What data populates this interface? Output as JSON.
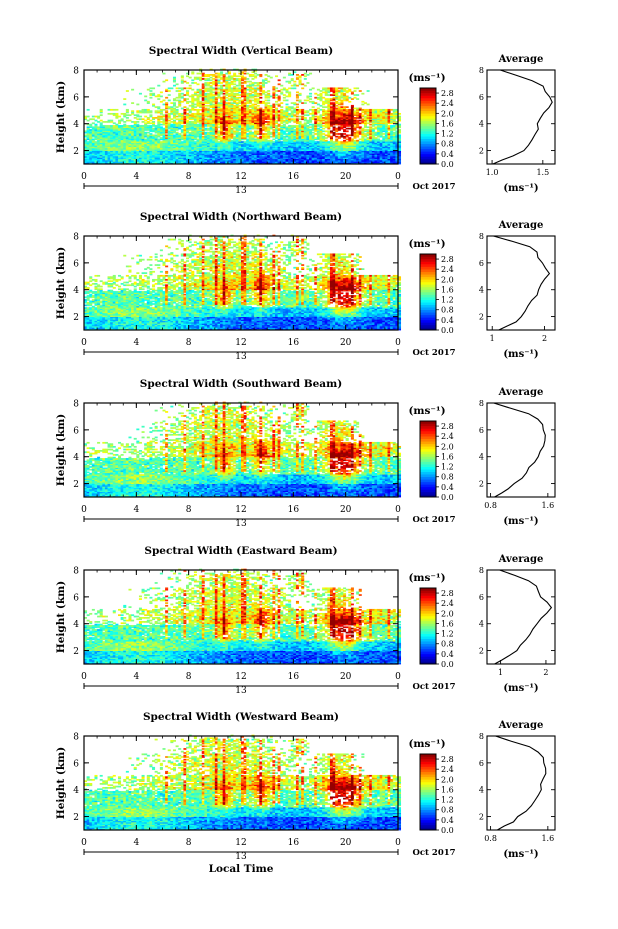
{
  "chart_data": [
    {
      "type": "heatmap",
      "title": "Spectral Width (Vertical Beam)",
      "ylabel": "Height (km)",
      "xlim": [
        0,
        24
      ],
      "ylim": [
        1,
        8
      ],
      "x_ticks": [
        "0",
        "4",
        "8",
        "12",
        "16",
        "20",
        "0"
      ],
      "y_ticks": [
        "2",
        "4",
        "6",
        "8"
      ],
      "date_label": "13",
      "month_label": "Oct 2017",
      "colorbar": {
        "unit": "(ms⁻¹)",
        "ticks": [
          "2.8",
          "2.4",
          "2.0",
          "1.6",
          "1.2",
          "0.8",
          "0.4",
          "0.0"
        ],
        "range": [
          0.0,
          3.0
        ]
      },
      "average_profile": {
        "title": "Average",
        "xlabel": "(ms⁻¹)",
        "x_ticks": [
          "1.0",
          "1.5"
        ],
        "xlim": [
          0.95,
          1.62
        ],
        "points": [
          [
            1.0,
            1.0
          ],
          [
            1.1,
            1.3
          ],
          [
            1.2,
            1.6
          ],
          [
            1.3,
            2.0
          ],
          [
            1.35,
            2.4
          ],
          [
            1.38,
            2.8
          ],
          [
            1.42,
            3.2
          ],
          [
            1.45,
            3.6
          ],
          [
            1.46,
            4.0
          ],
          [
            1.48,
            4.4
          ],
          [
            1.52,
            4.8
          ],
          [
            1.55,
            5.2
          ],
          [
            1.58,
            5.6
          ],
          [
            1.56,
            6.0
          ],
          [
            1.52,
            6.4
          ],
          [
            1.5,
            6.8
          ],
          [
            1.4,
            7.2
          ],
          [
            1.25,
            7.6
          ],
          [
            1.08,
            8.0
          ]
        ]
      }
    },
    {
      "type": "heatmap",
      "title": "Spectral Width (Northward Beam)",
      "ylabel": "Height (km)",
      "xlim": [
        0,
        24
      ],
      "ylim": [
        1,
        8
      ],
      "x_ticks": [
        "0",
        "4",
        "8",
        "12",
        "16",
        "20",
        "0"
      ],
      "y_ticks": [
        "2",
        "4",
        "6",
        "8"
      ],
      "date_label": "13",
      "month_label": "Oct 2017",
      "colorbar": {
        "unit": "(ms⁻¹)",
        "ticks": [
          "2.8",
          "2.4",
          "2.0",
          "1.6",
          "1.2",
          "0.8",
          "0.4",
          "0.0"
        ],
        "range": [
          0.0,
          3.0
        ]
      },
      "average_profile": {
        "title": "Average",
        "xlabel": "(ms⁻¹)",
        "x_ticks": [
          "1",
          "2"
        ],
        "xlim": [
          0.9,
          2.2
        ],
        "points": [
          [
            1.1,
            1.0
          ],
          [
            1.3,
            1.3
          ],
          [
            1.45,
            1.6
          ],
          [
            1.55,
            2.0
          ],
          [
            1.62,
            2.4
          ],
          [
            1.7,
            2.8
          ],
          [
            1.78,
            3.2
          ],
          [
            1.85,
            3.6
          ],
          [
            1.9,
            4.0
          ],
          [
            1.95,
            4.4
          ],
          [
            2.02,
            4.8
          ],
          [
            2.08,
            5.2
          ],
          [
            2.0,
            5.6
          ],
          [
            1.95,
            6.0
          ],
          [
            1.9,
            6.4
          ],
          [
            1.85,
            6.8
          ],
          [
            1.7,
            7.2
          ],
          [
            1.4,
            7.6
          ],
          [
            1.05,
            8.0
          ]
        ]
      }
    },
    {
      "type": "heatmap",
      "title": "Spectral Width (Southward Beam)",
      "ylabel": "Height (km)",
      "xlim": [
        0,
        24
      ],
      "ylim": [
        1,
        8
      ],
      "x_ticks": [
        "0",
        "4",
        "8",
        "12",
        "16",
        "20",
        "0"
      ],
      "y_ticks": [
        "2",
        "4",
        "6",
        "8"
      ],
      "date_label": "13",
      "month_label": "Oct 2017",
      "colorbar": {
        "unit": "(ms⁻¹)",
        "ticks": [
          "2.8",
          "2.4",
          "2.0",
          "1.6",
          "1.2",
          "0.8",
          "0.4",
          "0.0"
        ],
        "range": [
          0.0,
          3.0
        ]
      },
      "average_profile": {
        "title": "Average",
        "xlabel": "(ms⁻¹)",
        "x_ticks": [
          "0.8",
          "1.6"
        ],
        "xlim": [
          0.75,
          1.7
        ],
        "points": [
          [
            0.85,
            1.0
          ],
          [
            0.95,
            1.3
          ],
          [
            1.05,
            1.6
          ],
          [
            1.15,
            2.0
          ],
          [
            1.22,
            2.4
          ],
          [
            1.28,
            2.8
          ],
          [
            1.34,
            3.2
          ],
          [
            1.4,
            3.6
          ],
          [
            1.45,
            4.0
          ],
          [
            1.5,
            4.4
          ],
          [
            1.55,
            4.8
          ],
          [
            1.58,
            5.2
          ],
          [
            1.57,
            5.6
          ],
          [
            1.55,
            6.0
          ],
          [
            1.52,
            6.4
          ],
          [
            1.48,
            6.8
          ],
          [
            1.35,
            7.2
          ],
          [
            1.1,
            7.6
          ],
          [
            0.85,
            8.0
          ]
        ]
      }
    },
    {
      "type": "heatmap",
      "title": "Spectral Width (Eastward Beam)",
      "ylabel": "Height (km)",
      "xlim": [
        0,
        24
      ],
      "ylim": [
        1,
        8
      ],
      "x_ticks": [
        "0",
        "4",
        "8",
        "12",
        "16",
        "20",
        "0"
      ],
      "y_ticks": [
        "2",
        "4",
        "6",
        "8"
      ],
      "date_label": "13",
      "month_label": "Oct 2017",
      "colorbar": {
        "unit": "(ms⁻¹)",
        "ticks": [
          "2.8",
          "2.4",
          "2.0",
          "1.6",
          "1.2",
          "0.8",
          "0.4",
          "0.0"
        ],
        "range": [
          0.0,
          3.0
        ]
      },
      "average_profile": {
        "title": "Average",
        "xlabel": "(ms⁻¹)",
        "x_ticks": [
          "1",
          "2"
        ],
        "xlim": [
          0.7,
          2.2
        ],
        "points": [
          [
            0.9,
            1.0
          ],
          [
            1.05,
            1.3
          ],
          [
            1.2,
            1.6
          ],
          [
            1.35,
            2.0
          ],
          [
            1.45,
            2.4
          ],
          [
            1.55,
            2.8
          ],
          [
            1.62,
            3.2
          ],
          [
            1.7,
            3.6
          ],
          [
            1.78,
            4.0
          ],
          [
            1.88,
            4.4
          ],
          [
            2.0,
            4.8
          ],
          [
            2.1,
            5.2
          ],
          [
            2.0,
            5.6
          ],
          [
            1.9,
            6.0
          ],
          [
            1.85,
            6.4
          ],
          [
            1.78,
            6.8
          ],
          [
            1.6,
            7.2
          ],
          [
            1.3,
            7.6
          ],
          [
            0.95,
            8.0
          ]
        ]
      }
    },
    {
      "type": "heatmap",
      "title": "Spectral Width (Westward Beam)",
      "ylabel": "Height (km)",
      "xlabel": "Local Time",
      "xlim": [
        0,
        24
      ],
      "ylim": [
        1,
        8
      ],
      "x_ticks": [
        "0",
        "4",
        "8",
        "12",
        "16",
        "20",
        "0"
      ],
      "y_ticks": [
        "2",
        "4",
        "6",
        "8"
      ],
      "date_label": "13",
      "month_label": "Oct 2017",
      "colorbar": {
        "unit": "(ms⁻¹)",
        "ticks": [
          "2.8",
          "2.4",
          "2.0",
          "1.6",
          "1.2",
          "0.8",
          "0.4",
          "0.0"
        ],
        "range": [
          0.0,
          3.0
        ]
      },
      "average_profile": {
        "title": "Average",
        "xlabel": "(ms⁻¹)",
        "x_ticks": [
          "0.8",
          "1.6"
        ],
        "xlim": [
          0.75,
          1.7
        ],
        "points": [
          [
            0.9,
            1.0
          ],
          [
            1.0,
            1.3
          ],
          [
            1.1,
            1.6
          ],
          [
            1.2,
            2.0
          ],
          [
            1.3,
            2.4
          ],
          [
            1.36,
            2.8
          ],
          [
            1.42,
            3.2
          ],
          [
            1.46,
            3.6
          ],
          [
            1.5,
            4.0
          ],
          [
            1.52,
            4.4
          ],
          [
            1.55,
            4.8
          ],
          [
            1.57,
            5.2
          ],
          [
            1.56,
            5.6
          ],
          [
            1.55,
            6.0
          ],
          [
            1.52,
            6.4
          ],
          [
            1.48,
            6.8
          ],
          [
            1.35,
            7.2
          ],
          [
            1.1,
            7.6
          ],
          [
            0.85,
            8.0
          ]
        ]
      }
    }
  ]
}
